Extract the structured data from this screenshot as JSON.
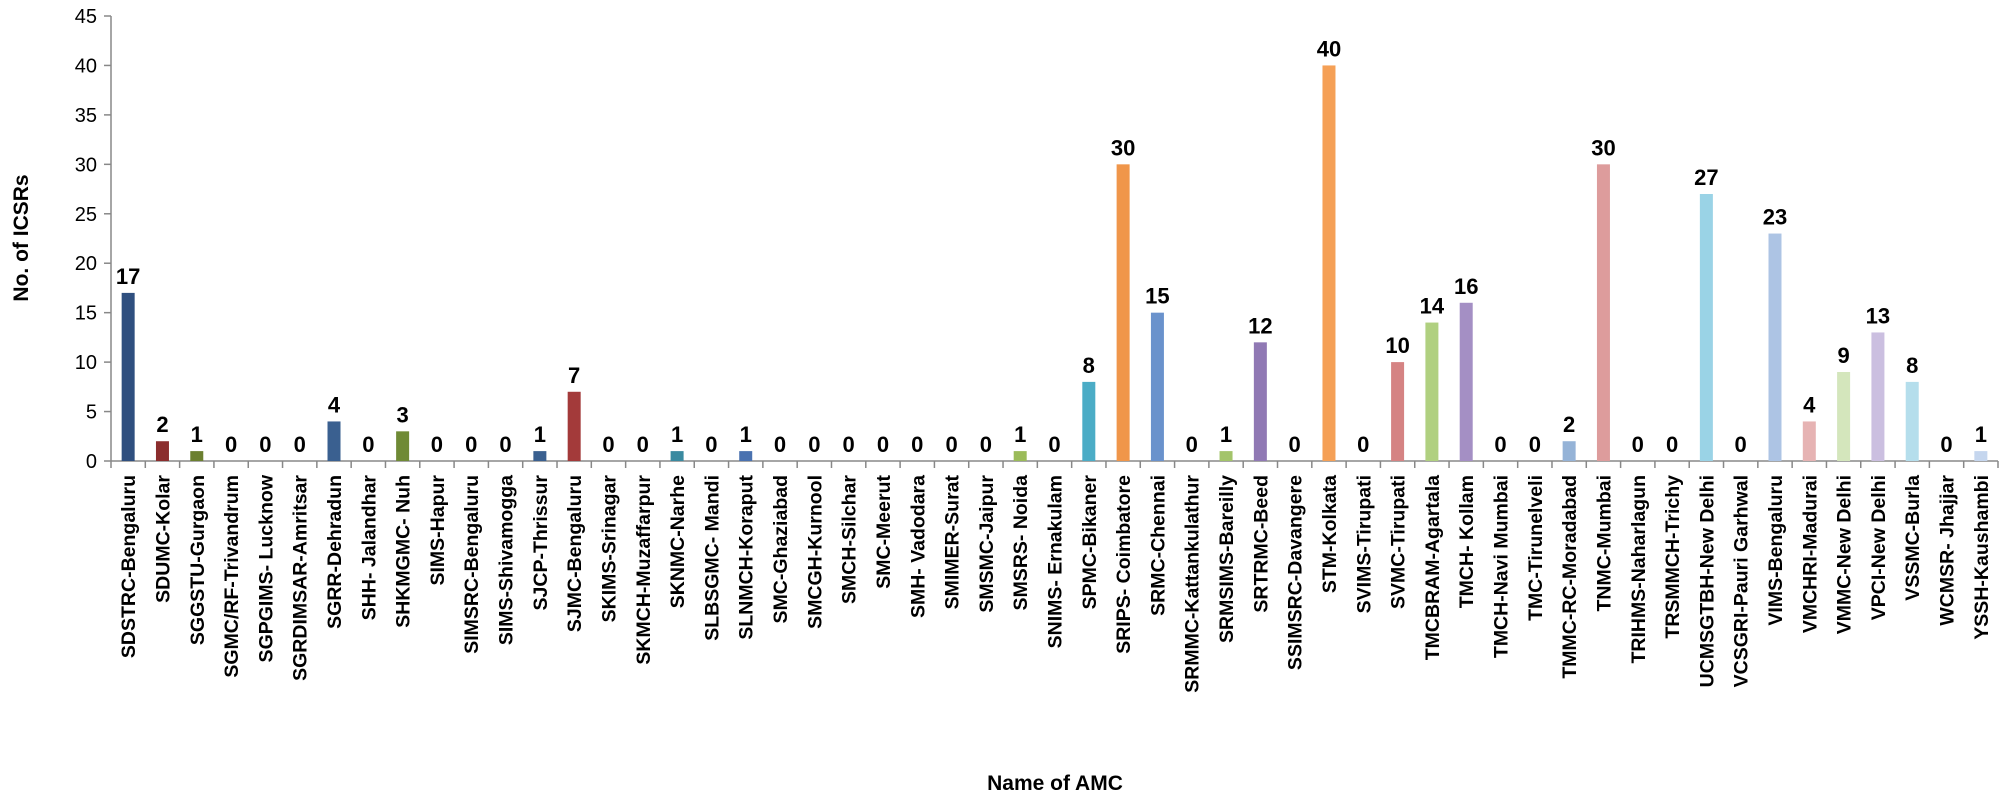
{
  "chart_data": {
    "type": "bar",
    "title": "",
    "xlabel": "Name of AMC",
    "ylabel": "No. of ICSRs",
    "ylim": [
      0,
      45
    ],
    "yticks": [
      0,
      5,
      10,
      15,
      20,
      25,
      30,
      35,
      40,
      45
    ],
    "grid": false,
    "legend": "none",
    "categories": [
      "SDSTRC-Bengaluru",
      "SDUMC-Kolar",
      "SGGSTU-Gurgaon",
      "SGMC/RF-Trivandrum",
      "SGPGIMS- Lucknow",
      "SGRDIMSAR-Amritsar",
      "SGRR-Dehradun",
      "SHH- Jalandhar",
      "SHKMGMC- Nuh",
      "SIMS-Hapur",
      "SIMSRC-Bengaluru",
      "SIMS-Shivamogga",
      "SJCP-Thrissur",
      "SJMC-Bengaluru",
      "SKIMS-Srinagar",
      "SKMCH-Muzaffarpur",
      "SKNMC-Narhe",
      "SLBSGMC- Mandi",
      "SLNMCH-Koraput",
      "SMC-Ghaziabad",
      "SMCGH-Kurnool",
      "SMCH-Silchar",
      "SMC-Meerut",
      "SMH- Vadodara",
      "SMIMER-Surat",
      "SMSMC-Jaipur",
      "SMSRS- Noida",
      "SNIMS- Ernakulam",
      "SPMC-Bikaner",
      "SRIPS- Coimbatore",
      "SRMC-Chennai",
      "SRMMC-Kattankulathur",
      "SRMSIMS-Bareilly",
      "SRTRMC-Beed",
      "SSIMSRC-Davangere",
      "STM-Kolkata",
      "SVIMS-Tirupati",
      "SVMC-Tirupati",
      "TMCBRAM-Agartala",
      "TMCH- Kollam",
      "TMCH-Navi Mumbai",
      "TMC-Tirunelveli",
      "TMMC-RC-Moradabad",
      "TNMC-Mumbai",
      "TRIHMS-Naharlagun",
      "TRSMMCH-Trichy",
      "UCMSGTBH-New Delhi",
      "VCSGRI-Pauri Garhwal",
      "VIMS-Bengaluru",
      "VMCHRI-Madurai",
      "VMMC-New Delhi",
      "VPCI-New Delhi",
      "VSSMC-Burla",
      "WCMSR- Jhajjar",
      "YSSH-Kaushambi"
    ],
    "values": [
      17,
      2,
      1,
      0,
      0,
      0,
      4,
      0,
      3,
      0,
      0,
      0,
      1,
      7,
      0,
      0,
      1,
      0,
      1,
      0,
      0,
      0,
      0,
      0,
      0,
      0,
      1,
      0,
      8,
      30,
      15,
      0,
      1,
      12,
      0,
      40,
      0,
      10,
      14,
      16,
      0,
      0,
      2,
      30,
      0,
      0,
      27,
      0,
      23,
      4,
      9,
      13,
      8,
      0,
      1
    ],
    "colors": [
      "#2f4f7f",
      "#8b2d2d",
      "#6b7f2f",
      "#2f4f7f",
      "#8b2d2d",
      "#6b7f2f",
      "#3a6090",
      "#8b2d2d",
      "#6f8a35",
      "#5b4a8a",
      "#2f7f8f",
      "#c26a1f",
      "#3a6090",
      "#a33a3a",
      "#7f9a3f",
      "#6e5a9a",
      "#3a8aa0",
      "#d5823a",
      "#4a72b0",
      "#b94a4a",
      "#8fae4a",
      "#7e6aae",
      "#4aa0b8",
      "#e08e45",
      "#5a86c4",
      "#c45a5a",
      "#9bbb59",
      "#8064a2",
      "#4bacc6",
      "#f0964a",
      "#6a92cc",
      "#cc6e6e",
      "#a3c46a",
      "#9079b4",
      "#5fb8d0",
      "#f5a056",
      "#7aa0d8",
      "#d58383",
      "#b0d080",
      "#a48fc4",
      "#7cc8dc",
      "#f7b074",
      "#95b3d7",
      "#dd9c9c",
      "#c3dba0",
      "#b8a6d2",
      "#9ad3e6",
      "#f9c092",
      "#adc4e4",
      "#e6b3b3",
      "#d4e6bc",
      "#cbbfe0",
      "#b5deec",
      "#fbd0ae",
      "#c5d6ee"
    ]
  }
}
